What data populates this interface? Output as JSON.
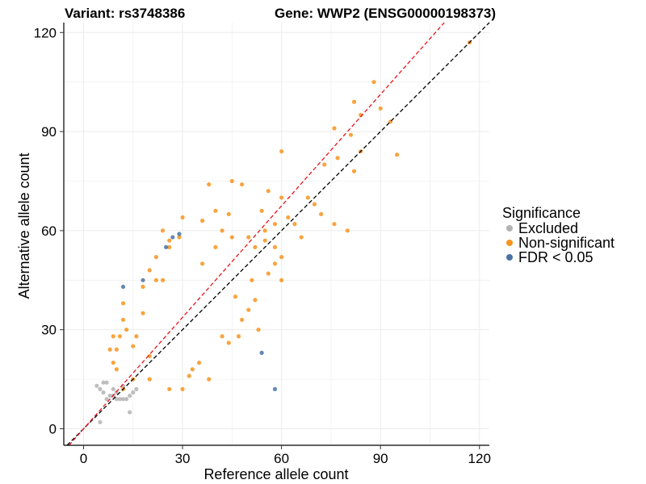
{
  "chart_data": {
    "type": "scatter",
    "title_left": "Variant: rs3748386",
    "title_right": "Gene: WWP2 (ENSG00000198373)",
    "xlabel": "Reference allele count",
    "ylabel": "Alternative allele count",
    "xlim": [
      -6,
      123
    ],
    "ylim": [
      -5,
      123
    ],
    "xticks": [
      0,
      30,
      60,
      90,
      120
    ],
    "yticks": [
      0,
      30,
      60,
      90,
      120
    ],
    "grid": true,
    "legend": {
      "title": "Significance",
      "position": "right",
      "entries": [
        {
          "name": "Excluded",
          "color": "#b3b3b3"
        },
        {
          "name": "Non-significant",
          "color": "#f7941d"
        },
        {
          "name": "FDR < 0.05",
          "color": "#4a72a6"
        }
      ]
    },
    "reference_lines": [
      {
        "name": "identity line",
        "slope": 1.0,
        "intercept": 0,
        "color": "#000000",
        "dash": true
      },
      {
        "name": "fitted line",
        "slope": 1.125,
        "intercept": 0,
        "color": "#e8141c",
        "dash": true
      }
    ],
    "series": [
      {
        "name": "Excluded",
        "color": "#b3b3b3",
        "points": [
          [
            5,
            2
          ],
          [
            5,
            12
          ],
          [
            6,
            14
          ],
          [
            7,
            14
          ],
          [
            6,
            11
          ],
          [
            7,
            9
          ],
          [
            8,
            10
          ],
          [
            9,
            10
          ],
          [
            10,
            9
          ],
          [
            11,
            9
          ],
          [
            12,
            9
          ],
          [
            13,
            9
          ],
          [
            14,
            10
          ],
          [
            14,
            5
          ],
          [
            9,
            12
          ],
          [
            10,
            11
          ],
          [
            12,
            13
          ],
          [
            15,
            11
          ],
          [
            4,
            13
          ],
          [
            16,
            12
          ]
        ]
      },
      {
        "name": "Non-significant",
        "color": "#f7941d",
        "points": [
          [
            88,
            105
          ],
          [
            82,
            99
          ],
          [
            90,
            97
          ],
          [
            84,
            95
          ],
          [
            76,
            91
          ],
          [
            93,
            93
          ],
          [
            81,
            89
          ],
          [
            95,
            83
          ],
          [
            84,
            84
          ],
          [
            82,
            78
          ],
          [
            77,
            82
          ],
          [
            73,
            80
          ],
          [
            60,
            84
          ],
          [
            117,
            117
          ],
          [
            60,
            70
          ],
          [
            68,
            70
          ],
          [
            76,
            62
          ],
          [
            80,
            60
          ],
          [
            72,
            65
          ],
          [
            70,
            68
          ],
          [
            45,
            75
          ],
          [
            48,
            74
          ],
          [
            38,
            74
          ],
          [
            56,
            72
          ],
          [
            54,
            66
          ],
          [
            62,
            64
          ],
          [
            66,
            58
          ],
          [
            58,
            62
          ],
          [
            64,
            62
          ],
          [
            42,
            60
          ],
          [
            36,
            63
          ],
          [
            30,
            64
          ],
          [
            22,
            52
          ],
          [
            18,
            43
          ],
          [
            11,
            28
          ],
          [
            12,
            38
          ],
          [
            12,
            33
          ],
          [
            9,
            28
          ],
          [
            8,
            24
          ],
          [
            50,
            58
          ],
          [
            52,
            55
          ],
          [
            55,
            57
          ],
          [
            40,
            66
          ],
          [
            44,
            65
          ],
          [
            26,
            57
          ],
          [
            24,
            60
          ],
          [
            26,
            55
          ],
          [
            29,
            58
          ],
          [
            50,
            36
          ],
          [
            48,
            33
          ],
          [
            53,
            30
          ],
          [
            46,
            40
          ],
          [
            47,
            28
          ],
          [
            42,
            28
          ],
          [
            44,
            26
          ],
          [
            52,
            39
          ],
          [
            51,
            45
          ],
          [
            56,
            47
          ],
          [
            58,
            50
          ],
          [
            60,
            52
          ],
          [
            35,
            20
          ],
          [
            33,
            18
          ],
          [
            38,
            15
          ],
          [
            30,
            12
          ],
          [
            26,
            12
          ],
          [
            32,
            16
          ],
          [
            20,
            22
          ],
          [
            15,
            25
          ],
          [
            18,
            35
          ],
          [
            13,
            30
          ],
          [
            16,
            28
          ],
          [
            10,
            24
          ],
          [
            22,
            45
          ],
          [
            20,
            48
          ],
          [
            24,
            45
          ],
          [
            55,
            60
          ],
          [
            58,
            55
          ],
          [
            40,
            55
          ],
          [
            36,
            50
          ],
          [
            60,
            45
          ],
          [
            45,
            58
          ],
          [
            15,
            15
          ],
          [
            12,
            12
          ],
          [
            20,
            15
          ],
          [
            10,
            18
          ],
          [
            9,
            20
          ]
        ]
      },
      {
        "name": "FDR < 0.05",
        "color": "#4a72a6",
        "points": [
          [
            12,
            43
          ],
          [
            18,
            45
          ],
          [
            25,
            55
          ],
          [
            27,
            58
          ],
          [
            29,
            59
          ],
          [
            54,
            23
          ],
          [
            58,
            12
          ]
        ]
      }
    ]
  }
}
